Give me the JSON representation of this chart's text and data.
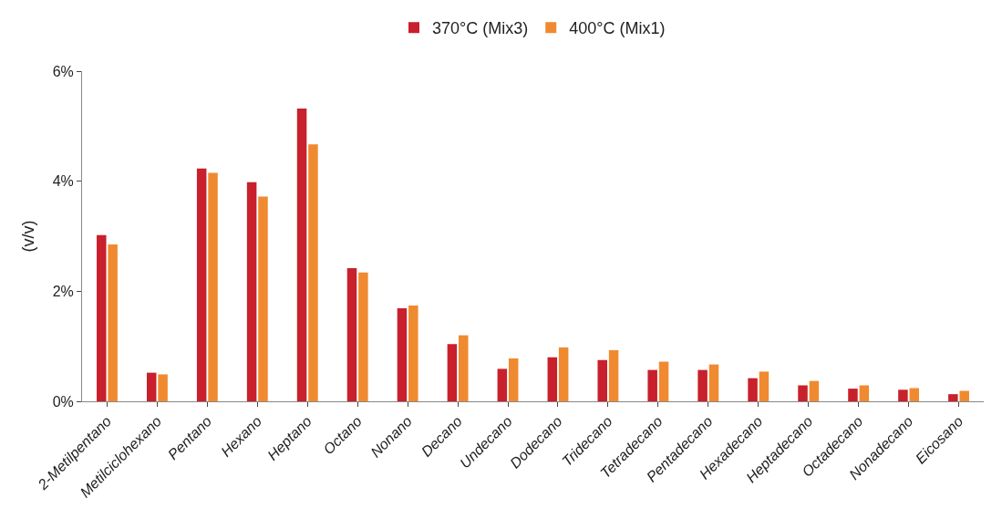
{
  "chart_data": {
    "type": "bar",
    "ylabel": "(v/v)",
    "categories": [
      "2-Metilpentano",
      "Metilciclohexano",
      "Pentano",
      "Hexano",
      "Heptano",
      "Octano",
      "Nonano",
      "Decano",
      "Undecano",
      "Dodecano",
      "Tridecano",
      "Tetradecano",
      "Pentadecano",
      "Hexadecano",
      "Heptadecano",
      "Octadecano",
      "Nonadecano",
      "Eicosano"
    ],
    "series": [
      {
        "name": "370°C (Mix3)",
        "color": "#c8202c",
        "values": [
          3.02,
          0.52,
          4.23,
          3.98,
          5.32,
          2.42,
          1.69,
          1.04,
          0.59,
          0.8,
          0.75,
          0.57,
          0.57,
          0.42,
          0.29,
          0.23,
          0.21,
          0.13
        ]
      },
      {
        "name": "400°C (Mix1)",
        "color": "#f08a30",
        "values": [
          2.85,
          0.49,
          4.15,
          3.72,
          4.67,
          2.34,
          1.74,
          1.2,
          0.78,
          0.98,
          0.93,
          0.72,
          0.67,
          0.54,
          0.37,
          0.29,
          0.24,
          0.19
        ]
      }
    ],
    "ylim": [
      0,
      6
    ],
    "yticks": [
      {
        "value": 0,
        "label": "0%"
      },
      {
        "value": 2,
        "label": "2%"
      },
      {
        "value": 4,
        "label": "4%"
      },
      {
        "value": 6,
        "label": "6%"
      }
    ],
    "legend": "top"
  }
}
